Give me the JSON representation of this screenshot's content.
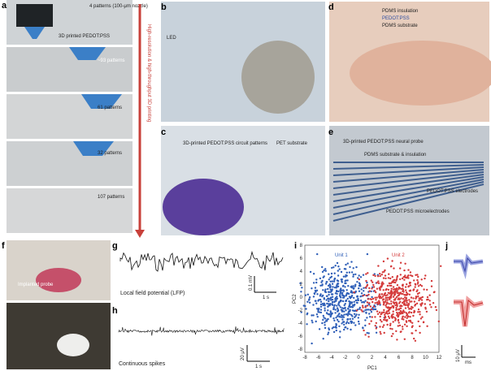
{
  "panels": {
    "a": {
      "label": "a",
      "top_note": "4 patterns (100-μm nozzle)",
      "printed": "3D printed PEDOT:PSS",
      "counts": [
        "~93 patterns",
        "61 patterns",
        "32 patterns",
        "107 patterns"
      ],
      "arrow_text": "High-resolution & high-throughput 3D printing"
    },
    "b": {
      "label": "b",
      "led": "LED"
    },
    "c": {
      "label": "c",
      "circuit": "3D-printed PEDOT:PSS circuit patterns",
      "substrate": "PET substrate"
    },
    "d": {
      "label": "d",
      "layers": [
        "PDMS insulation",
        "PEDOT:PSS",
        "PDMS substrate"
      ]
    },
    "e": {
      "label": "e",
      "title": "3D-printed PEDOT:PSS neural probe",
      "substrate": "PDMS substrate & insulation",
      "electrodes": "PEDOT:PSS electrodes",
      "micro": "PEDOT:PSS microelectrodes"
    },
    "f": {
      "label": "f",
      "probe": "Implanted probe"
    },
    "g": {
      "label": "g",
      "caption": "Local field potential (LFP)",
      "v_scale": "0.1 mV",
      "t_scale": "1 s"
    },
    "h": {
      "label": "h",
      "caption": "Continuous spikes",
      "v_scale": "20 μV",
      "t_scale": "1 s"
    },
    "i": {
      "label": "i",
      "unit1": "Unit 1",
      "unit2": "Unit 2",
      "xlabel": "PC1",
      "ylabel": "PC2",
      "xticks": [
        "-8",
        "-6",
        "-4",
        "-2",
        "0",
        "2",
        "4",
        "6",
        "8",
        "10",
        "12"
      ],
      "yticks": [
        "8",
        "6",
        "4",
        "2",
        "0",
        "-2",
        "-4",
        "-6",
        "-8"
      ]
    },
    "j": {
      "label": "j",
      "v_scale": "10 μV",
      "t_scale": "ms"
    }
  }
}
